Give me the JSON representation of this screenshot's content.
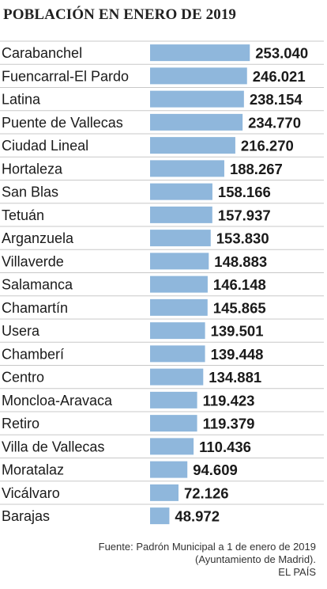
{
  "chart_data": {
    "type": "bar",
    "orientation": "horizontal",
    "title": "POBLACIÓN EN ENERO DE 2019",
    "color": "#8fb7dc",
    "categories": [
      "Carabanchel",
      "Fuencarral-El Pardo",
      "Latina",
      "Puente de Vallecas",
      "Ciudad Lineal",
      "Hortaleza",
      "San Blas",
      "Tetuán",
      "Arganzuela",
      "Villaverde",
      "Salamanca",
      "Chamartín",
      "Usera",
      "Chamberí",
      "Centro",
      "Moncloa-Aravaca",
      "Retiro",
      "Villa de Vallecas",
      "Moratalaz",
      "Vicálvaro",
      "Barajas"
    ],
    "values": [
      253040,
      246021,
      238154,
      234770,
      216270,
      188267,
      158166,
      157937,
      153830,
      148883,
      146148,
      145865,
      139501,
      139448,
      134881,
      119423,
      119379,
      110436,
      94609,
      72126,
      48972
    ],
    "value_labels": [
      "253.040",
      "246.021",
      "238.154",
      "234.770",
      "216.270",
      "188.267",
      "158.166",
      "157.937",
      "153.830",
      "148.883",
      "146.148",
      "145.865",
      "139.501",
      "139.448",
      "134.881",
      "119.423",
      "119.379",
      "110.436",
      "94.609",
      "72.126",
      "48.972"
    ]
  },
  "source": {
    "line1": "Fuente: Padrón Municipal a 1 de enero de 2019",
    "line2": "(Ayuntamiento de Madrid).",
    "credit": "EL PAÍS"
  }
}
